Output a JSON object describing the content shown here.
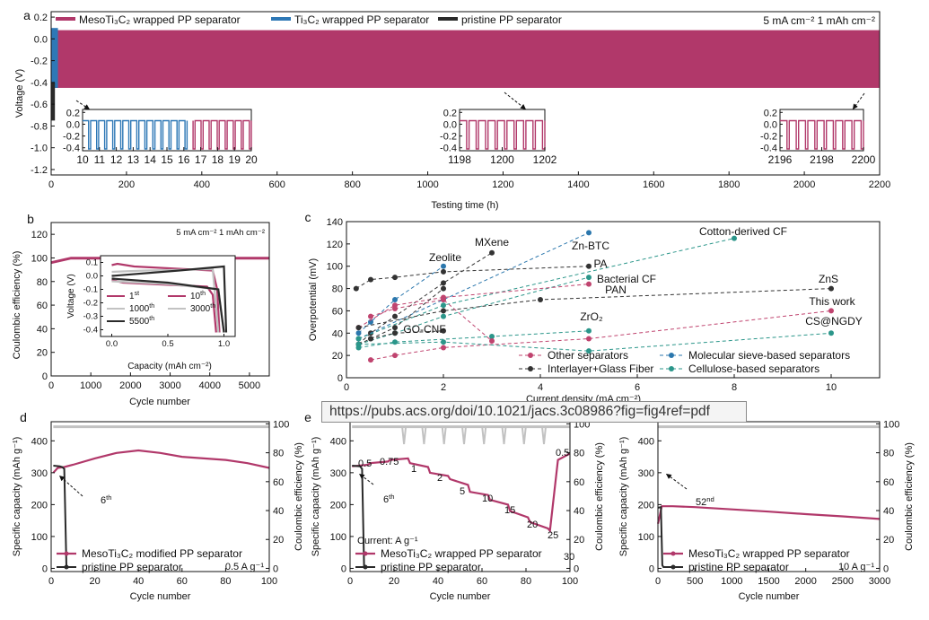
{
  "colors": {
    "meso": "#b1386a",
    "ti3c2": "#2e78b6",
    "pristine": "#2a2a2a",
    "ce": "#c2c2c2",
    "other": "#c0446f",
    "sieve": "#2b77ad",
    "cellulose": "#2b968a",
    "interlayer": "#333333"
  },
  "url_bar": {
    "text": "https://pubs.acs.org/doi/10.1021/jacs.3c08986?fig=fig4ref=pdf"
  },
  "chart_data": [
    {
      "id": "a",
      "type": "line",
      "panel_label": "a",
      "xlabel": "Testing time (h)",
      "ylabel": "Voltage (V)",
      "xlim": [
        0,
        2200
      ],
      "ylim": [
        -1.25,
        0.25
      ],
      "xticks": [
        "0",
        "200",
        "400",
        "600",
        "800",
        "1000",
        "1200",
        "1400",
        "1600",
        "1800",
        "2000",
        "2200"
      ],
      "yticks": [
        "0.2",
        "0.0",
        "-0.2",
        "-0.4",
        "-0.6",
        "-0.8",
        "-1.0",
        "-1.2"
      ],
      "condition": "5 mA cm⁻²  1 mAh cm⁻²",
      "legend": [
        "MesoTi₃C₂ wrapped  PP separator",
        "Ti₃C₂ wrapped  PP separator",
        "pristine PP separator"
      ],
      "series": [
        {
          "name": "MesoTi₃C₂ wrapped PP separator",
          "x_range": [
            0,
            2200
          ],
          "y_range": [
            -0.45,
            0.08
          ]
        },
        {
          "name": "Ti₃C₂ wrapped PP separator",
          "x_range": [
            0,
            18
          ],
          "y_range": [
            -0.45,
            0.1
          ]
        },
        {
          "name": "pristine PP separator",
          "x_range": [
            0,
            10
          ],
          "y_range": [
            -0.75,
            0.1
          ]
        }
      ],
      "insets": [
        {
          "xticks": [
            "10",
            "11",
            "12",
            "13",
            "14",
            "15",
            "16",
            "17",
            "18",
            "19",
            "20"
          ],
          "yticks": [
            "0.2",
            "0.0",
            "-0.2",
            "-0.4"
          ]
        },
        {
          "xticks": [
            "1198",
            "1200",
            "1202"
          ],
          "yticks": [
            "0.2",
            "0.0",
            "-0.2",
            "-0.4"
          ]
        },
        {
          "xticks": [
            "2196",
            "2198",
            "2200"
          ],
          "yticks": [
            "0.2",
            "0.0",
            "-0.2",
            "-0.4"
          ]
        }
      ]
    },
    {
      "id": "b",
      "type": "line",
      "panel_label": "b",
      "xlabel": "Cycle number",
      "ylabel": "Coulombic efficiency (%)",
      "xlim": [
        0,
        5500
      ],
      "ylim": [
        0,
        130
      ],
      "xticks": [
        "0",
        "1000",
        "2000",
        "3000",
        "4000",
        "5000"
      ],
      "yticks": [
        "0",
        "20",
        "40",
        "60",
        "80",
        "100",
        "120"
      ],
      "condition": "5 mA cm⁻² 1 mAh cm⁻²",
      "series": [
        {
          "name": "Coulombic efficiency",
          "x": [
            0,
            500,
            5500
          ],
          "y": [
            96,
            99.8,
            99.8
          ]
        }
      ],
      "inset": {
        "xlabel": "Capacity (mAh cm⁻²)",
        "ylabel": "Voltage (V)",
        "xticks": [
          "0.0",
          "0.5",
          "1.0"
        ],
        "yticks": [
          "0.1",
          "0.0",
          "-0.1",
          "-0.2",
          "-0.3",
          "-0.4"
        ],
        "legend": [
          {
            "base": "1",
            "sup": "st"
          },
          {
            "base": "10",
            "sup": "th"
          },
          {
            "base": "1000",
            "sup": "th"
          },
          {
            "base": "3000",
            "sup": "th"
          },
          {
            "base": "5500",
            "sup": "th"
          }
        ]
      }
    },
    {
      "id": "c",
      "type": "scatter",
      "panel_label": "c",
      "xlabel": "Current density (mA cm⁻²)",
      "ylabel": "Overpotential (mV)",
      "xlim": [
        0,
        11
      ],
      "ylim": [
        0,
        140
      ],
      "xticks": [
        "0",
        "2",
        "4",
        "6",
        "8",
        "10"
      ],
      "yticks": [
        "0",
        "20",
        "40",
        "60",
        "80",
        "100",
        "120",
        "140"
      ],
      "legend": [
        "Other separators",
        "Molecular sieve-based separators",
        "Interlayer+Glass Fiber",
        "Cellulose-based separators"
      ],
      "labels": [
        "MXene",
        "Zeolite",
        "Zn-BTC",
        "Cotton-derived CF",
        "PA",
        "Bacterial CF",
        "PAN",
        "ZnS",
        "This work",
        "GO-CNF",
        "ZrO₂",
        "CS@NGDY"
      ],
      "series": [
        {
          "name": "MXene",
          "group": "interlayer",
          "x": [
            0.25,
            0.5,
            1,
            2,
            3
          ],
          "y": [
            30,
            40,
            55,
            85,
            112
          ]
        },
        {
          "name": "Zeolite",
          "group": "sieve",
          "x": [
            0.25,
            0.5,
            1,
            2
          ],
          "y": [
            40,
            50,
            70,
            100
          ]
        },
        {
          "name": "Zn-BTC",
          "group": "sieve",
          "x": [
            0.25,
            2,
            5
          ],
          "y": [
            35,
            70,
            130
          ]
        },
        {
          "name": "Cotton-derived CF",
          "group": "cellulose",
          "x": [
            0.25,
            2,
            8
          ],
          "y": [
            35,
            65,
            125
          ]
        },
        {
          "name": "PA",
          "group": "interlayer",
          "x": [
            0.2,
            0.5,
            1,
            2,
            5
          ],
          "y": [
            80,
            88,
            90,
            95,
            100
          ]
        },
        {
          "name": "Bacterial CF",
          "group": "cellulose",
          "x": [
            0.25,
            1,
            2,
            5
          ],
          "y": [
            30,
            40,
            55,
            90
          ]
        },
        {
          "name": "PAN",
          "group": "other",
          "x": [
            0.25,
            1,
            2,
            5
          ],
          "y": [
            45,
            65,
            72,
            84
          ]
        },
        {
          "name": "ZnS",
          "group": "interlayer",
          "x": [
            0.25,
            2,
            4,
            10
          ],
          "y": [
            45,
            60,
            70,
            80
          ]
        },
        {
          "name": "This work",
          "group": "other",
          "x": [
            0.5,
            1,
            2,
            5,
            10
          ],
          "y": [
            16,
            20,
            27,
            35,
            60
          ]
        },
        {
          "name": "GO-CNF",
          "group": "interlayer",
          "x": [
            0.25,
            0.5,
            1,
            2
          ],
          "y": [
            30,
            35,
            40,
            42
          ]
        },
        {
          "name": "ZrO₂",
          "group": "cellulose",
          "x": [
            0.25,
            1,
            3,
            5
          ],
          "y": [
            27,
            32,
            37,
            42
          ]
        },
        {
          "name": "CS@NGDY",
          "group": "cellulose",
          "x": [
            0.25,
            2,
            5,
            10
          ],
          "y": [
            30,
            32,
            24,
            40
          ]
        },
        {
          "name": "Other separators (b)",
          "group": "other",
          "x": [
            0.5,
            1,
            2,
            3
          ],
          "y": [
            55,
            62,
            70,
            33
          ]
        },
        {
          "name": "Interlayer (b)",
          "group": "interlayer",
          "x": [
            0.5,
            1,
            2
          ],
          "y": [
            35,
            45,
            80
          ]
        }
      ]
    },
    {
      "id": "d",
      "type": "line",
      "panel_label": "d",
      "xlabel": "Cycle number",
      "ylabel": "Specific capacity (mAh g⁻¹)",
      "y2label": "Coulombic efficiency (%)",
      "xlim": [
        0,
        100
      ],
      "ylim": [
        -10,
        460
      ],
      "y2lim": [
        -2.2,
        101.5
      ],
      "xticks": [
        "0",
        "20",
        "40",
        "60",
        "80",
        "100"
      ],
      "yticks": [
        "0",
        "100",
        "200",
        "300",
        "400"
      ],
      "y2ticks": [
        "0",
        "20",
        "40",
        "60",
        "80",
        "100"
      ],
      "legend": [
        "MesoTi₃C₂ modified PP separator",
        "pristine PP separator"
      ],
      "condition": "0.5 A g⁻¹",
      "annotation": {
        "base": "6",
        "sup": "th"
      },
      "series": [
        {
          "name": "MesoTi₃C₂ modified PP separator",
          "x": [
            1,
            3,
            6,
            10,
            20,
            30,
            40,
            50,
            60,
            70,
            80,
            90,
            100
          ],
          "y": [
            300,
            315,
            318,
            325,
            345,
            362,
            370,
            362,
            350,
            345,
            340,
            330,
            315
          ]
        },
        {
          "name": "pristine PP separator",
          "x": [
            1,
            4,
            5,
            6,
            7,
            8
          ],
          "y": [
            322,
            320,
            318,
            312,
            5,
            2
          ]
        },
        {
          "name": "Coulombic efficiency",
          "axis": "y2",
          "x": [
            1,
            100
          ],
          "y": [
            98,
            98
          ]
        }
      ]
    },
    {
      "id": "e1",
      "type": "line",
      "panel_label": "e",
      "xlabel": "Cycle number",
      "ylabel": "Specific capacity (mAh g⁻¹)",
      "y2label": "Coulombic efficiency (%)",
      "xlim": [
        0,
        110
      ],
      "ylim": [
        -10,
        460
      ],
      "y2lim": [
        -2.2,
        101.5
      ],
      "xticks": [
        "0",
        "20",
        "40",
        "60",
        "80",
        "100"
      ],
      "yticks": [
        "0",
        "100",
        "200",
        "300",
        "400"
      ],
      "y2ticks": [
        "0",
        "20",
        "40",
        "60",
        "80",
        "100"
      ],
      "legend": [
        "MesoTi₃C₂ wrapped PP separator",
        "pristine PP separator"
      ],
      "current_label": "Current: A g⁻¹",
      "annotation": {
        "base": "6",
        "sup": "th"
      },
      "rate_labels": [
        "0.5",
        "0.75",
        "1",
        "2",
        "5",
        "10",
        "15",
        "20",
        "25",
        "30",
        "0.5"
      ],
      "series": [
        {
          "name": "MesoTi₃C₂ wrapped PP separator",
          "x": [
            1,
            9,
            10,
            19,
            20,
            29,
            30,
            39,
            40,
            49,
            50,
            59,
            60,
            69,
            70,
            79,
            80,
            89,
            90,
            99,
            100,
            104,
            110
          ],
          "y": [
            320,
            325,
            330,
            335,
            340,
            345,
            330,
            318,
            300,
            290,
            280,
            262,
            240,
            230,
            215,
            200,
            180,
            160,
            145,
            125,
            118,
            340,
            360
          ]
        },
        {
          "name": "pristine PP separator",
          "x": [
            1,
            5,
            6,
            7,
            8
          ],
          "y": [
            322,
            320,
            312,
            8,
            2
          ]
        },
        {
          "name": "Coulombic efficiency",
          "axis": "y2",
          "x": [
            1,
            110
          ],
          "y": [
            98,
            98
          ]
        }
      ]
    },
    {
      "id": "e2",
      "type": "line",
      "xlabel": "Cycle number",
      "ylabel": "Specific capacity (mAh g⁻¹)",
      "y2label": "Coulombic efficiency (%)",
      "xlim": [
        0,
        3000
      ],
      "ylim": [
        -10,
        460
      ],
      "y2lim": [
        -2.2,
        101.5
      ],
      "xticks": [
        "0",
        "500",
        "1000",
        "1500",
        "2000",
        "2500",
        "3000"
      ],
      "yticks": [
        "0",
        "100",
        "200",
        "300",
        "400"
      ],
      "y2ticks": [
        "0",
        "20",
        "40",
        "60",
        "80",
        "100"
      ],
      "legend": [
        "MesoTi₃C₂ wrapped PP separator",
        "pristine PP separator"
      ],
      "condition": "10 A g⁻¹",
      "annotation": {
        "base": "52",
        "sup": "nd"
      },
      "series": [
        {
          "name": "MesoTi₃C₂ wrapped PP separator",
          "x": [
            1,
            52,
            200,
            500,
            1000,
            1500,
            2000,
            2500,
            3000
          ],
          "y": [
            140,
            195,
            195,
            192,
            185,
            178,
            170,
            163,
            155
          ]
        },
        {
          "name": "pristine PP separator",
          "x": [
            1,
            40,
            60,
            80
          ],
          "y": [
            190,
            192,
            10,
            2
          ]
        },
        {
          "name": "Coulombic efficiency",
          "axis": "y2",
          "x": [
            1,
            3000
          ],
          "y": [
            98,
            98
          ]
        }
      ]
    }
  ]
}
